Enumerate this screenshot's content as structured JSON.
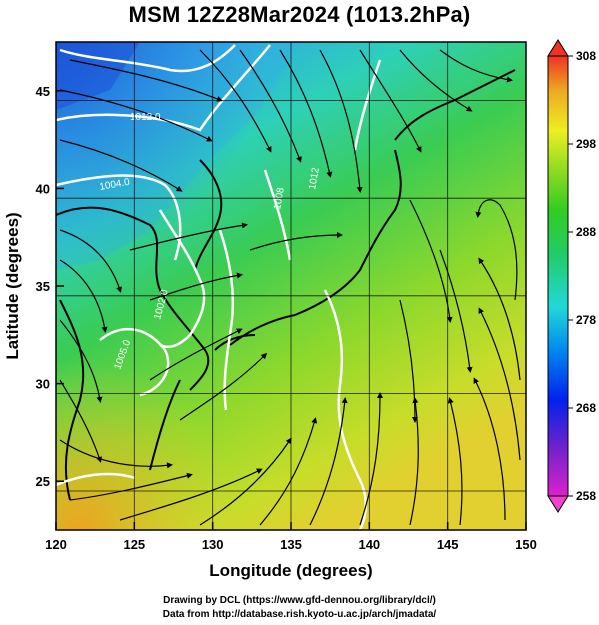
{
  "title": "MSM 12Z28Mar2024 (1013.2hPa)",
  "xaxis": {
    "label": "Longitude (degrees)",
    "range": [
      120,
      150
    ],
    "ticks": [
      120,
      125,
      130,
      135,
      140,
      145,
      150
    ]
  },
  "yaxis": {
    "label": "Latitude  (degrees)",
    "range": [
      22.5,
      47.5
    ],
    "ticks": [
      25,
      30,
      35,
      40,
      45
    ]
  },
  "colorbar": {
    "ticks": [
      308,
      298,
      288,
      278,
      268,
      258
    ],
    "range": [
      258,
      308
    ]
  },
  "isobar_labels": [
    "1004.0",
    "1008",
    "1012.0",
    "1012",
    "1002.0",
    "1005.0"
  ],
  "credits": [
    "Drawing by DCL (https://www.gfd-dennou.org/library/dcl/)",
    "Data from http://database.rish.kyoto-u.ac.jp/arch/jmadata/"
  ],
  "colors": {
    "gradient_low": "#cc00cc",
    "gradient_blue": "#0033ee",
    "gradient_cyan": "#22d8d8",
    "gradient_green": "#22cc22",
    "gradient_yellow": "#eeee22",
    "gradient_high": "#ee2222",
    "isobar": "#ffffff",
    "streamline": "#000000"
  }
}
